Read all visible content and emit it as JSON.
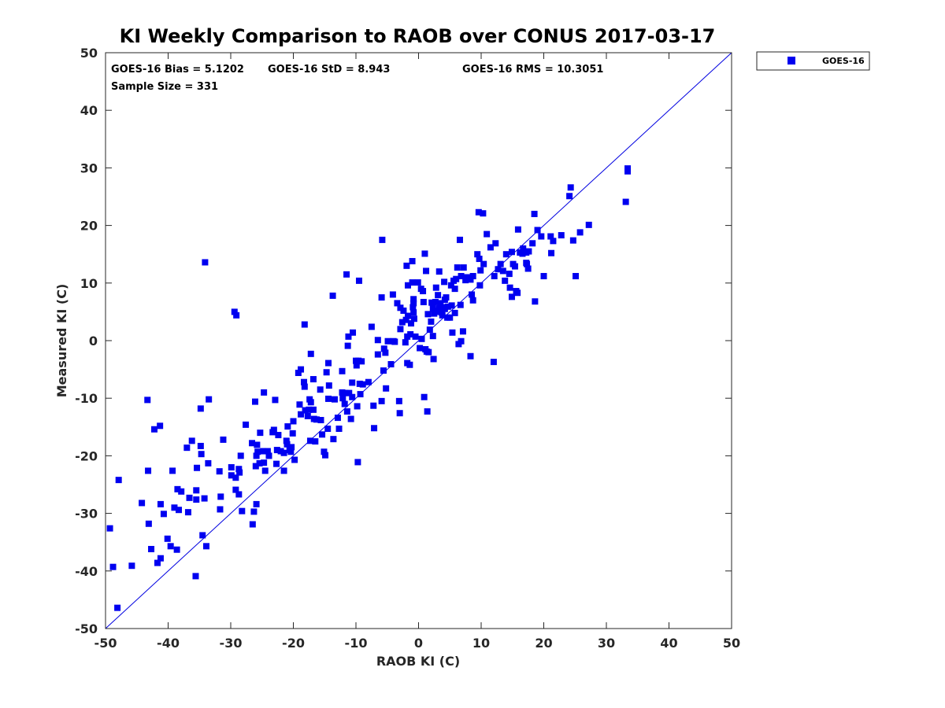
{
  "colors": {
    "marker": "#0000f0",
    "line": "#0000e0",
    "axis": "#262626"
  },
  "chart_data": {
    "type": "scatter",
    "title": "KI Weekly Comparison to RAOB over CONUS 2017-03-17",
    "xlabel": "RAOB KI (C)",
    "ylabel": "Measured KI (C)",
    "xlim": [
      -50,
      50
    ],
    "ylim": [
      -50,
      50
    ],
    "xticks": [
      -50,
      -40,
      -30,
      -20,
      -10,
      0,
      10,
      20,
      30,
      40,
      50
    ],
    "yticks": [
      -50,
      -40,
      -30,
      -20,
      -10,
      0,
      10,
      20,
      30,
      40,
      50
    ],
    "grid": false,
    "legend_position": "top-right-outside",
    "reference_line": "y = x",
    "stats": {
      "bias": "GOES-16 Bias = 5.1202",
      "std": "GOES-16 StD = 8.943",
      "rms": "GOES-16 RMS = 10.3051",
      "sample": "Sample Size = 331"
    },
    "series": [
      {
        "name": "GOES-16",
        "points": [
          [
            -49.3,
            -32.6
          ],
          [
            -48.8,
            -39.3
          ],
          [
            -48.1,
            -46.4
          ],
          [
            -47.9,
            -24.2
          ],
          [
            -45.8,
            -39.1
          ],
          [
            -44.2,
            -28.2
          ],
          [
            -43.3,
            -10.3
          ],
          [
            -43.2,
            -22.6
          ],
          [
            -43.1,
            -31.8
          ],
          [
            -42.7,
            -36.2
          ],
          [
            -42.2,
            -15.4
          ],
          [
            -41.7,
            -38.6
          ],
          [
            -41.3,
            -14.8
          ],
          [
            -41.2,
            -28.4
          ],
          [
            -41.2,
            -37.8
          ],
          [
            -40.7,
            -30.1
          ],
          [
            -40.1,
            -34.4
          ],
          [
            -39.6,
            -35.7
          ],
          [
            -39.3,
            -22.6
          ],
          [
            -39.0,
            -29.0
          ],
          [
            -38.6,
            -36.3
          ],
          [
            -38.5,
            -25.8
          ],
          [
            -38.3,
            -29.4
          ],
          [
            -37.9,
            -26.2
          ],
          [
            -37.0,
            -18.6
          ],
          [
            -36.8,
            -29.8
          ],
          [
            -36.6,
            -27.3
          ],
          [
            -36.2,
            -17.4
          ],
          [
            -35.6,
            -40.9
          ],
          [
            -35.5,
            -26.0
          ],
          [
            -35.5,
            -27.6
          ],
          [
            -35.4,
            -22.1
          ],
          [
            -34.8,
            -18.3
          ],
          [
            -34.8,
            -11.8
          ],
          [
            -34.7,
            -19.7
          ],
          [
            -34.5,
            -33.8
          ],
          [
            -34.2,
            -27.4
          ],
          [
            -34.1,
            13.6
          ],
          [
            -33.9,
            -35.7
          ],
          [
            -33.6,
            -21.3
          ],
          [
            -33.5,
            -10.2
          ],
          [
            -31.8,
            -22.7
          ],
          [
            -31.7,
            -29.3
          ],
          [
            -31.6,
            -27.1
          ],
          [
            -31.2,
            -17.2
          ],
          [
            -29.9,
            -23.4
          ],
          [
            -29.9,
            -22.0
          ],
          [
            -29.4,
            5.0
          ],
          [
            -29.2,
            -25.9
          ],
          [
            -29.2,
            -23.8
          ],
          [
            -29.1,
            4.4
          ],
          [
            -28.7,
            -22.3
          ],
          [
            -28.7,
            -26.7
          ],
          [
            -28.6,
            -22.9
          ],
          [
            -28.4,
            -20.0
          ],
          [
            -28.2,
            -29.6
          ],
          [
            -27.6,
            -14.6
          ],
          [
            -26.6,
            -17.8
          ],
          [
            -26.5,
            -31.9
          ],
          [
            -26.3,
            -29.7
          ],
          [
            -26.1,
            -10.6
          ],
          [
            -26.0,
            -21.8
          ],
          [
            -25.9,
            -20.0
          ],
          [
            -25.9,
            -28.4
          ],
          [
            -25.8,
            -18.1
          ],
          [
            -25.7,
            -19.3
          ],
          [
            -25.4,
            -21.3
          ],
          [
            -25.3,
            -16.0
          ],
          [
            -24.8,
            -19.2
          ],
          [
            -24.7,
            -21.2
          ],
          [
            -24.7,
            -9.0
          ],
          [
            -24.5,
            -22.6
          ],
          [
            -24.1,
            -19.2
          ],
          [
            -23.9,
            -20.0
          ],
          [
            -23.3,
            -15.9
          ],
          [
            -23.1,
            -15.5
          ],
          [
            -22.9,
            -10.3
          ],
          [
            -22.7,
            -21.4
          ],
          [
            -22.6,
            -19.0
          ],
          [
            -22.4,
            -16.4
          ],
          [
            -22.0,
            -19.2
          ],
          [
            -21.5,
            -22.6
          ],
          [
            -21.5,
            -19.5
          ],
          [
            -21.1,
            -17.4
          ],
          [
            -21.0,
            -18.0
          ],
          [
            -20.9,
            -14.9
          ],
          [
            -20.6,
            -19.0
          ],
          [
            -20.4,
            -19.3
          ],
          [
            -20.3,
            -18.5
          ],
          [
            -20.1,
            -16.1
          ],
          [
            -20.0,
            -14.0
          ],
          [
            -19.8,
            -20.7
          ],
          [
            -19.2,
            -5.6
          ],
          [
            -19.0,
            -11.1
          ],
          [
            -18.8,
            -5.0
          ],
          [
            -18.8,
            -12.8
          ],
          [
            -18.3,
            -7.2
          ],
          [
            -18.2,
            2.8
          ],
          [
            -18.2,
            -8.0
          ],
          [
            -18.1,
            -12.1
          ],
          [
            -17.7,
            -13.1
          ],
          [
            -17.5,
            -12.0
          ],
          [
            -17.4,
            -10.2
          ],
          [
            -17.3,
            -17.4
          ],
          [
            -17.2,
            -10.7
          ],
          [
            -17.2,
            -2.3
          ],
          [
            -16.8,
            -12.0
          ],
          [
            -16.8,
            -6.7
          ],
          [
            -16.7,
            -13.6
          ],
          [
            -16.5,
            -17.5
          ],
          [
            -16.3,
            -13.7
          ],
          [
            -15.7,
            -8.5
          ],
          [
            -15.6,
            -13.8
          ],
          [
            -15.4,
            -16.3
          ],
          [
            -15.1,
            -19.3
          ],
          [
            -14.9,
            -19.9
          ],
          [
            -14.7,
            -5.5
          ],
          [
            -14.5,
            -15.3
          ],
          [
            -14.4,
            -3.9
          ],
          [
            -14.4,
            -10.1
          ],
          [
            -14.3,
            -7.8
          ],
          [
            -13.7,
            7.8
          ],
          [
            -13.6,
            -17.1
          ],
          [
            -13.4,
            -10.2
          ],
          [
            -12.9,
            -13.4
          ],
          [
            -12.7,
            -15.3
          ],
          [
            -12.2,
            -9.0
          ],
          [
            -12.2,
            -5.3
          ],
          [
            -12.1,
            -10.0
          ],
          [
            -11.8,
            -11.0
          ],
          [
            -11.7,
            -9.1
          ],
          [
            -11.5,
            11.5
          ],
          [
            -11.4,
            -12.3
          ],
          [
            -11.3,
            -0.9
          ],
          [
            -11.2,
            0.7
          ],
          [
            -11.1,
            -9.1
          ],
          [
            -10.8,
            -13.6
          ],
          [
            -10.6,
            -9.8
          ],
          [
            -10.6,
            -7.3
          ],
          [
            -10.5,
            1.4
          ],
          [
            -10.0,
            -3.5
          ],
          [
            -9.9,
            -4.3
          ],
          [
            -9.8,
            -11.4
          ],
          [
            -9.7,
            -21.1
          ],
          [
            -9.6,
            -3.5
          ],
          [
            -9.5,
            10.4
          ],
          [
            -9.4,
            -7.5
          ],
          [
            -9.3,
            -9.3
          ],
          [
            -9.1,
            -3.6
          ],
          [
            -8.9,
            -7.6
          ],
          [
            -8.0,
            -7.2
          ],
          [
            -7.5,
            2.4
          ],
          [
            -7.2,
            -11.3
          ],
          [
            -7.1,
            -15.2
          ],
          [
            -6.5,
            -2.4
          ],
          [
            -6.5,
            0.1
          ],
          [
            -5.9,
            -10.5
          ],
          [
            -5.9,
            7.5
          ],
          [
            -5.8,
            17.5
          ],
          [
            -5.6,
            -5.2
          ],
          [
            -5.5,
            -1.4
          ],
          [
            -5.3,
            -2.1
          ],
          [
            -5.2,
            -8.3
          ],
          [
            -4.9,
            -0.1
          ],
          [
            -4.4,
            -4.1
          ],
          [
            -4.1,
            8.0
          ],
          [
            -4.0,
            -0.1
          ],
          [
            -3.8,
            -0.2
          ],
          [
            -3.4,
            6.5
          ],
          [
            -3.1,
            -10.5
          ],
          [
            -3.0,
            -12.6
          ],
          [
            -2.9,
            5.7
          ],
          [
            -2.9,
            2.0
          ],
          [
            -2.6,
            3.2
          ],
          [
            -2.4,
            5.2
          ],
          [
            -2.1,
            -0.3
          ],
          [
            -2.0,
            3.6
          ],
          [
            -1.9,
            13.0
          ],
          [
            -1.8,
            -3.9
          ],
          [
            -1.8,
            0.7
          ],
          [
            -1.7,
            4.3
          ],
          [
            -1.7,
            9.6
          ],
          [
            -1.4,
            -4.2
          ],
          [
            -1.3,
            1.1
          ],
          [
            -1.2,
            3.0
          ],
          [
            -1.0,
            10.1
          ],
          [
            -1.0,
            13.8
          ],
          [
            -0.9,
            5.8
          ],
          [
            -0.8,
            7.2
          ],
          [
            -0.8,
            4.9
          ],
          [
            -0.8,
            6.5
          ],
          [
            -0.7,
            3.8
          ],
          [
            -0.5,
            0.7
          ],
          [
            -0.1,
            10.1
          ],
          [
            0.2,
            -1.3
          ],
          [
            0.4,
            9.0
          ],
          [
            0.5,
            0.3
          ],
          [
            0.7,
            8.6
          ],
          [
            0.8,
            6.7
          ],
          [
            0.9,
            -9.8
          ],
          [
            1.0,
            15.1
          ],
          [
            1.1,
            -1.5
          ],
          [
            1.2,
            12.1
          ],
          [
            1.3,
            -1.9
          ],
          [
            1.4,
            -12.3
          ],
          [
            1.5,
            4.6
          ],
          [
            1.6,
            -2.0
          ],
          [
            1.8,
            1.9
          ],
          [
            2.0,
            3.3
          ],
          [
            2.1,
            6.6
          ],
          [
            2.3,
            0.8
          ],
          [
            2.3,
            5.5
          ],
          [
            2.3,
            6.5
          ],
          [
            2.4,
            -3.2
          ],
          [
            2.5,
            4.7
          ],
          [
            2.6,
            5.2
          ],
          [
            2.7,
            6.7
          ],
          [
            2.8,
            9.2
          ],
          [
            3.0,
            5.0
          ],
          [
            3.1,
            7.9
          ],
          [
            3.3,
            12.0
          ],
          [
            3.3,
            5.6
          ],
          [
            3.5,
            6.5
          ],
          [
            3.7,
            4.9
          ],
          [
            3.8,
            5.8
          ],
          [
            3.8,
            4.4
          ],
          [
            4.1,
            10.2
          ],
          [
            4.2,
            5.5
          ],
          [
            4.2,
            7.1
          ],
          [
            4.4,
            7.5
          ],
          [
            4.6,
            4.0
          ],
          [
            4.7,
            5.9
          ],
          [
            5.0,
            4.0
          ],
          [
            5.2,
            9.6
          ],
          [
            5.3,
            6.1
          ],
          [
            5.4,
            1.4
          ],
          [
            5.6,
            10.4
          ],
          [
            5.8,
            9.0
          ],
          [
            5.8,
            4.8
          ],
          [
            6.0,
            10.7
          ],
          [
            6.2,
            12.7
          ],
          [
            6.4,
            -0.6
          ],
          [
            6.6,
            17.5
          ],
          [
            6.7,
            6.2
          ],
          [
            6.8,
            -0.1
          ],
          [
            6.8,
            11.2
          ],
          [
            7.1,
            1.6
          ],
          [
            7.2,
            12.7
          ],
          [
            7.5,
            10.5
          ],
          [
            7.8,
            11.0
          ],
          [
            8.3,
            -2.7
          ],
          [
            8.3,
            10.6
          ],
          [
            8.5,
            8.0
          ],
          [
            8.7,
            7.0
          ],
          [
            8.7,
            11.2
          ],
          [
            9.4,
            15.0
          ],
          [
            9.6,
            22.3
          ],
          [
            9.7,
            14.2
          ],
          [
            9.8,
            9.6
          ],
          [
            9.9,
            12.2
          ],
          [
            10.3,
            22.1
          ],
          [
            10.4,
            13.3
          ],
          [
            10.9,
            18.5
          ],
          [
            11.5,
            16.2
          ],
          [
            12.0,
            -3.7
          ],
          [
            12.1,
            11.2
          ],
          [
            12.3,
            16.9
          ],
          [
            12.7,
            12.4
          ],
          [
            13.1,
            13.3
          ],
          [
            13.5,
            12.1
          ],
          [
            13.8,
            10.4
          ],
          [
            14.0,
            15.0
          ],
          [
            14.5,
            11.6
          ],
          [
            14.6,
            9.2
          ],
          [
            14.9,
            15.4
          ],
          [
            14.9,
            7.6
          ],
          [
            15.1,
            13.3
          ],
          [
            15.4,
            12.9
          ],
          [
            15.6,
            8.6
          ],
          [
            15.8,
            8.3
          ],
          [
            15.9,
            19.3
          ],
          [
            16.2,
            15.3
          ],
          [
            16.6,
            15.1
          ],
          [
            16.7,
            16.0
          ],
          [
            17.2,
            13.5
          ],
          [
            17.2,
            15.3
          ],
          [
            17.3,
            13.3
          ],
          [
            17.5,
            12.5
          ],
          [
            17.6,
            15.5
          ],
          [
            18.2,
            16.9
          ],
          [
            18.5,
            22.0
          ],
          [
            18.6,
            6.8
          ],
          [
            19.0,
            19.2
          ],
          [
            19.6,
            18.1
          ],
          [
            20.0,
            11.2
          ],
          [
            21.1,
            18.1
          ],
          [
            21.2,
            15.2
          ],
          [
            21.5,
            17.3
          ],
          [
            22.8,
            18.3
          ],
          [
            24.1,
            25.1
          ],
          [
            24.3,
            26.6
          ],
          [
            24.7,
            17.4
          ],
          [
            25.1,
            11.2
          ],
          [
            25.8,
            18.8
          ],
          [
            27.2,
            20.1
          ],
          [
            33.1,
            24.1
          ],
          [
            33.4,
            29.4
          ],
          [
            33.4,
            29.9
          ]
        ]
      }
    ]
  }
}
